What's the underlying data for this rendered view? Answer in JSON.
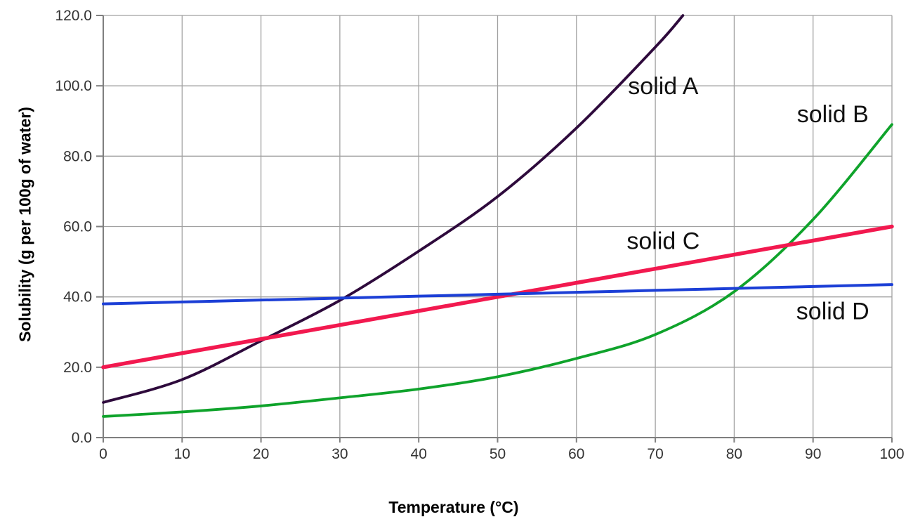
{
  "chart_data": {
    "type": "line",
    "title": "",
    "xlabel": "Temperature (°C)",
    "ylabel": "Solubility (g per 100g of water)",
    "xlim": [
      0,
      100
    ],
    "ylim": [
      0,
      120
    ],
    "grid": true,
    "legend_position": "inline-annotations",
    "x_tick_values": [
      0,
      10,
      20,
      30,
      40,
      50,
      60,
      70,
      80,
      90,
      100
    ],
    "x_tick_labels": [
      "0",
      "10",
      "20",
      "30",
      "40",
      "50",
      "60",
      "70",
      "80",
      "90",
      "100"
    ],
    "y_tick_values": [
      0,
      20,
      40,
      60,
      80,
      100,
      120
    ],
    "y_tick_labels": [
      "0.0",
      "20.0",
      "40.0",
      "60.0",
      "80.0",
      "100.0",
      "120.0"
    ],
    "series": [
      {
        "name": "solid A",
        "color": "#2E0A3C",
        "stroke_width": 3.8,
        "points": [
          [
            0,
            10
          ],
          [
            10,
            16.5
          ],
          [
            20,
            27.5
          ],
          [
            30,
            39
          ],
          [
            40,
            53
          ],
          [
            50,
            68.5
          ],
          [
            60,
            88
          ],
          [
            70,
            111
          ],
          [
            73.5,
            120
          ]
        ]
      },
      {
        "name": "solid B",
        "color": "#0FA32B",
        "stroke_width": 3.8,
        "points": [
          [
            0,
            6
          ],
          [
            10,
            7.3
          ],
          [
            20,
            9
          ],
          [
            30,
            11.3
          ],
          [
            40,
            13.8
          ],
          [
            50,
            17.3
          ],
          [
            60,
            22.5
          ],
          [
            70,
            29.3
          ],
          [
            80,
            41.5
          ],
          [
            90,
            62
          ],
          [
            100,
            89
          ]
        ]
      },
      {
        "name": "solid C",
        "color": "#F2194F",
        "stroke_width": 5.5,
        "points": [
          [
            0,
            20
          ],
          [
            20,
            28
          ],
          [
            40,
            36
          ],
          [
            60,
            44
          ],
          [
            80,
            52
          ],
          [
            100,
            60
          ]
        ]
      },
      {
        "name": "solid D",
        "color": "#1C3FD6",
        "stroke_width": 4,
        "points": [
          [
            0,
            38
          ],
          [
            20,
            39.1
          ],
          [
            40,
            40.2
          ],
          [
            60,
            41.3
          ],
          [
            80,
            42.4
          ],
          [
            100,
            43.5
          ]
        ]
      }
    ],
    "annotations": [
      {
        "text": "solid A",
        "x": 71,
        "y": 100
      },
      {
        "text": "solid B",
        "x": 92.5,
        "y": 92
      },
      {
        "text": "solid C",
        "x": 71,
        "y": 56
      },
      {
        "text": "solid D",
        "x": 92.5,
        "y": 36
      }
    ],
    "colors": {
      "background": "#FFFFFF",
      "grid": "#A1A1A1",
      "axis": "#7F7F7F",
      "tick_label": "#333333",
      "axis_title": "#000000",
      "annotation": "#111111"
    }
  }
}
